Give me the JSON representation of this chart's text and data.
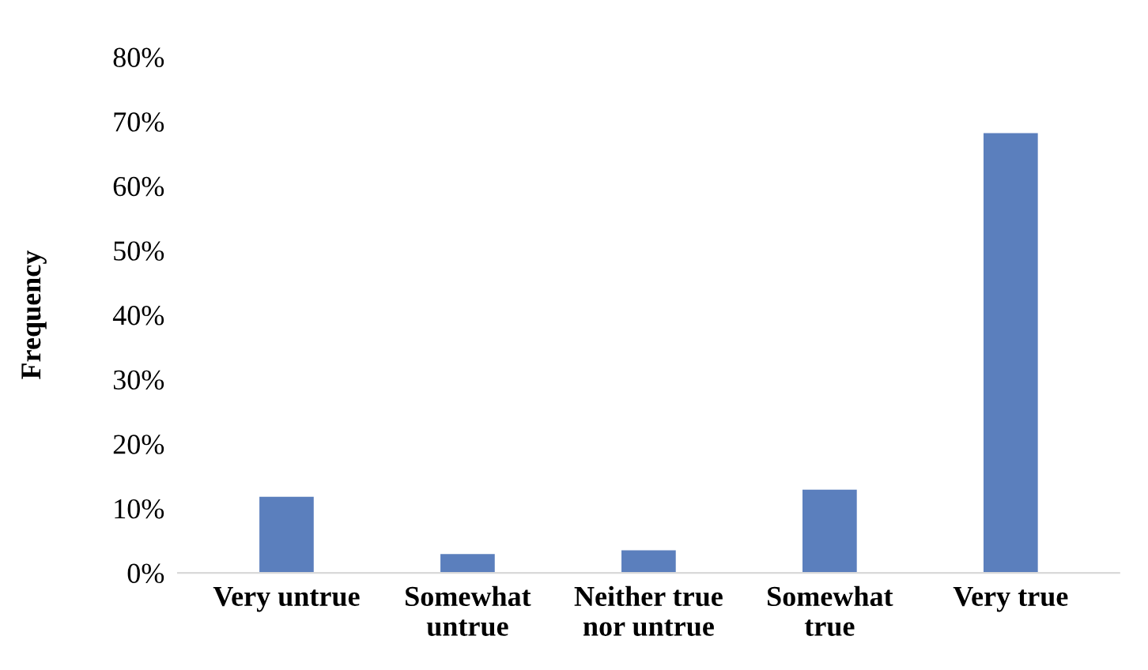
{
  "chart_data": {
    "type": "bar",
    "ylabel": "Frequency",
    "categories": [
      "Very untrue",
      "Somewhat\nuntrue",
      "Neither true\nnor untrue",
      "Somewhat\ntrue",
      "Very true"
    ],
    "values": [
      11.8,
      2.9,
      3.5,
      12.9,
      68.2
    ],
    "color": "#5b7fbd",
    "ylim": [
      0,
      80
    ],
    "yticks": [
      {
        "value": 0,
        "label": "0%"
      },
      {
        "value": 10,
        "label": "10%"
      },
      {
        "value": 20,
        "label": "20%"
      },
      {
        "value": 30,
        "label": "30%"
      },
      {
        "value": 40,
        "label": "40%"
      },
      {
        "value": 50,
        "label": "50%"
      },
      {
        "value": 60,
        "label": "60%"
      },
      {
        "value": 70,
        "label": "70%"
      },
      {
        "value": 80,
        "label": "80%"
      }
    ],
    "grid": false,
    "legend": false
  }
}
